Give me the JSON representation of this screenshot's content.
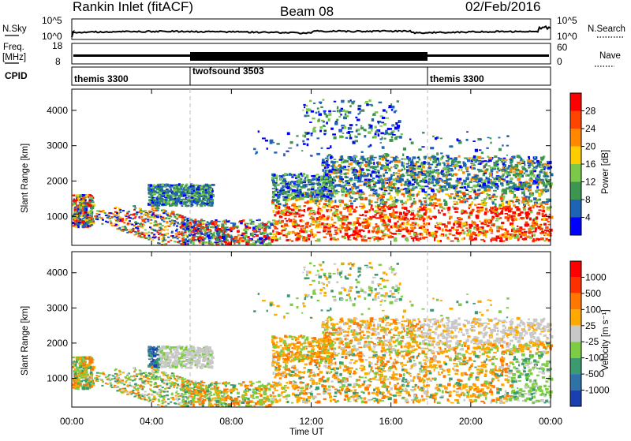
{
  "header": {
    "title": "Rankin Inlet (fitACF)",
    "beam": "Beam 08",
    "date": "02/Feb/2016"
  },
  "nsky_panel": {
    "left_label": "N.Sky",
    "left_ticks": [
      "10^5",
      "10^0"
    ],
    "right_ticks": [
      "10^5",
      "10^0"
    ],
    "right_label": "N.Search",
    "left_line": "solid",
    "right_line": "dotted"
  },
  "freq_panel": {
    "left_label_top": "Freq.",
    "left_label_unit": "[MHz]",
    "left_ticks": [
      "18",
      "8"
    ],
    "right_ticks": [
      "60",
      "0"
    ],
    "right_label": "Nave",
    "left_line": "solid",
    "right_line": "dotted"
  },
  "cpid": {
    "label": "CPID",
    "segments": [
      {
        "name": "themis 3300",
        "start_h": 0,
        "end_h": 6
      },
      {
        "name": "twofsound 3503",
        "start_h": 6,
        "end_h": 18
      },
      {
        "name": "themis 3300",
        "start_h": 18,
        "end_h": 24
      }
    ]
  },
  "power_panel": {
    "ylabel": "Slant Range [km]",
    "yticks": [
      "1000",
      "2000",
      "3000",
      "4000"
    ],
    "colorbar_label": "Power [dB]",
    "colorbar_ticks": [
      "4",
      "8",
      "12",
      "16",
      "20",
      "24",
      "28"
    ],
    "colors": [
      "#0000ff",
      "#1e64b4",
      "#3c9650",
      "#7bc84a",
      "#ffcc00",
      "#ff8800",
      "#ff4400",
      "#ff0000"
    ]
  },
  "velocity_panel": {
    "ylabel": "Slant Range [km]",
    "yticks": [
      "1000",
      "2000",
      "3000",
      "4000"
    ],
    "colorbar_label": "Velocity [m s⁻¹]",
    "colorbar_ticks": [
      "1000",
      "500",
      "100",
      "25",
      "-25",
      "-100",
      "-500",
      "-1000"
    ],
    "colors": [
      "#1a3fb0",
      "#2e72a8",
      "#3a9a70",
      "#7ccc44",
      "#c8c8c8",
      "#ffa800",
      "#ff7700",
      "#ff3000",
      "#ff0000"
    ]
  },
  "xaxis": {
    "label": "Time UT",
    "ticks": [
      "00:00",
      "04:00",
      "08:00",
      "12:00",
      "16:00",
      "20:00",
      "00:00"
    ]
  },
  "chart_data": {
    "type": "heatmap",
    "x_range_hours": [
      0,
      24
    ],
    "y_range_km": [
      180,
      4600
    ],
    "power_regions": [
      {
        "t0": 0.0,
        "t1": 6.5,
        "r0": 300,
        "r1": 1600,
        "level": "mixed"
      },
      {
        "t0": 3.8,
        "t1": 7.0,
        "r0": 1300,
        "r1": 1900,
        "level": "low"
      },
      {
        "t0": 10.0,
        "t1": 24.0,
        "r0": 300,
        "r1": 1700,
        "level": "high"
      },
      {
        "t0": 13.0,
        "t1": 24.0,
        "r0": 1700,
        "r1": 2700,
        "level": "low"
      },
      {
        "t0": 12.0,
        "t1": 16.0,
        "r0": 3500,
        "r1": 4200,
        "level": "low"
      }
    ]
  }
}
